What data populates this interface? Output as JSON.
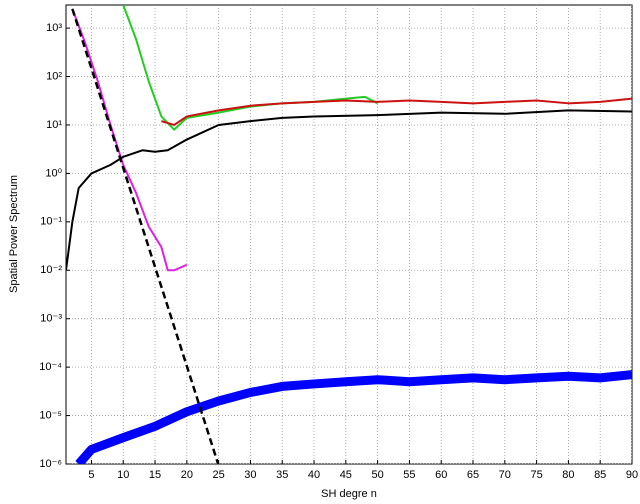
{
  "chart_data": {
    "type": "line",
    "ylabel": "Spatial Power Spectrum",
    "xlabel": "SH degre n",
    "log_y": true,
    "grid": true,
    "xlim": [
      1,
      90
    ],
    "ylim": [
      1e-06,
      3000
    ],
    "xticks": [
      5,
      10,
      15,
      20,
      25,
      30,
      35,
      40,
      45,
      50,
      55,
      60,
      65,
      70,
      75,
      80,
      85,
      90
    ],
    "yticks": [
      {
        "value": 1e-06,
        "label": "10⁻⁶"
      },
      {
        "value": 1e-05,
        "label": "10⁻⁵"
      },
      {
        "value": 0.0001,
        "label": "10⁻⁴"
      },
      {
        "value": 0.001,
        "label": "10⁻³"
      },
      {
        "value": 0.01,
        "label": "10⁻²"
      },
      {
        "value": 0.1,
        "label": "10⁻¹"
      },
      {
        "value": 1,
        "label": "10⁰"
      },
      {
        "value": 10,
        "label": "10¹"
      },
      {
        "value": 100,
        "label": "10²"
      },
      {
        "value": 1000,
        "label": "10³"
      }
    ],
    "series": [
      {
        "color": "#0000ff",
        "width": 9,
        "dashed": false,
        "x": [
          3,
          5,
          10,
          15,
          20,
          25,
          30,
          35,
          40,
          45,
          50,
          55,
          60,
          65,
          70,
          75,
          80,
          85,
          90
        ],
        "values": [
          1e-06,
          2e-06,
          3.5e-06,
          6e-06,
          1.2e-05,
          2e-05,
          3e-05,
          4e-05,
          4.5e-05,
          5e-05,
          5.5e-05,
          5e-05,
          5.5e-05,
          6e-05,
          5.5e-05,
          6e-05,
          6.5e-05,
          6e-05,
          7e-05
        ]
      },
      {
        "color": "#22cc22",
        "width": 2,
        "dashed": false,
        "x": [
          10,
          12,
          14,
          16,
          18,
          20,
          25,
          30,
          35,
          40,
          45,
          48,
          50
        ],
        "values": [
          3000,
          600,
          80,
          15,
          8,
          14,
          18,
          24,
          28,
          30,
          35,
          38,
          28
        ]
      },
      {
        "color": "#cc1111",
        "width": 2,
        "dashed": false,
        "x": [
          16,
          18,
          20,
          25,
          30,
          35,
          40,
          45,
          50,
          55,
          60,
          65,
          70,
          75,
          80,
          85,
          90
        ],
        "values": [
          12,
          10,
          15,
          20,
          25,
          28,
          30,
          32,
          30,
          32,
          30,
          28,
          30,
          32,
          28,
          30,
          35
        ]
      },
      {
        "color": "#dd22dd",
        "width": 2,
        "dashed": false,
        "x": [
          2,
          4,
          6,
          8,
          10,
          12,
          14,
          16,
          17,
          18,
          20
        ],
        "values": [
          2500,
          500,
          80,
          10,
          1.5,
          0.4,
          0.08,
          0.03,
          0.01,
          0.01,
          0.013
        ]
      },
      {
        "color": "#000000",
        "width": 2,
        "dashed": false,
        "x": [
          1,
          2,
          3,
          5,
          8,
          10,
          13,
          15,
          17,
          20,
          25,
          30,
          35,
          40,
          50,
          60,
          70,
          80,
          90
        ],
        "values": [
          0.01,
          0.1,
          0.5,
          1,
          1.5,
          2.2,
          3,
          2.8,
          3,
          5,
          10,
          12,
          14,
          15,
          16,
          18,
          17,
          20,
          19
        ]
      },
      {
        "color": "#000000",
        "width": 2.5,
        "dashed": true,
        "x": [
          2,
          5,
          10,
          15,
          20,
          25
        ],
        "values": [
          2500,
          148,
          1.3,
          0.0117,
          0.000105,
          9.3e-07
        ]
      }
    ]
  }
}
